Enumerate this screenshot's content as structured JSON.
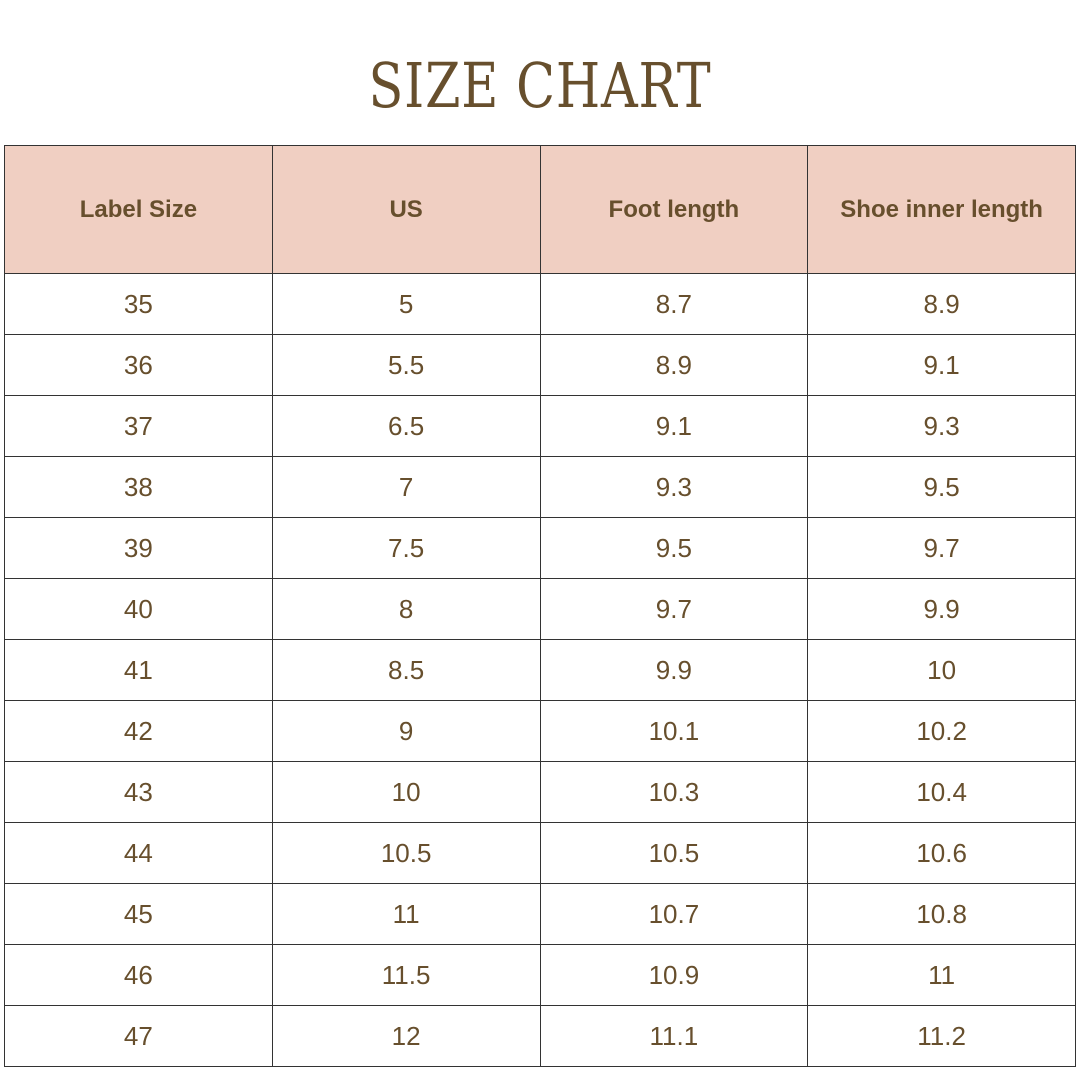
{
  "title": "SIZE CHART",
  "colors": {
    "text": "#674f2d",
    "header_bg": "#f0cfc2"
  },
  "table": {
    "headers": [
      "Label Size",
      "US",
      "Foot length",
      "Shoe inner length"
    ],
    "rows": [
      [
        "35",
        "5",
        "8.7",
        "8.9"
      ],
      [
        "36",
        "5.5",
        "8.9",
        "9.1"
      ],
      [
        "37",
        "6.5",
        "9.1",
        "9.3"
      ],
      [
        "38",
        "7",
        "9.3",
        "9.5"
      ],
      [
        "39",
        "7.5",
        "9.5",
        "9.7"
      ],
      [
        "40",
        "8",
        "9.7",
        "9.9"
      ],
      [
        "41",
        "8.5",
        "9.9",
        "10"
      ],
      [
        "42",
        "9",
        "10.1",
        "10.2"
      ],
      [
        "43",
        "10",
        "10.3",
        "10.4"
      ],
      [
        "44",
        "10.5",
        "10.5",
        "10.6"
      ],
      [
        "45",
        "11",
        "10.7",
        "10.8"
      ],
      [
        "46",
        "11.5",
        "10.9",
        "11"
      ],
      [
        "47",
        "12",
        "11.1",
        "11.2"
      ]
    ]
  }
}
